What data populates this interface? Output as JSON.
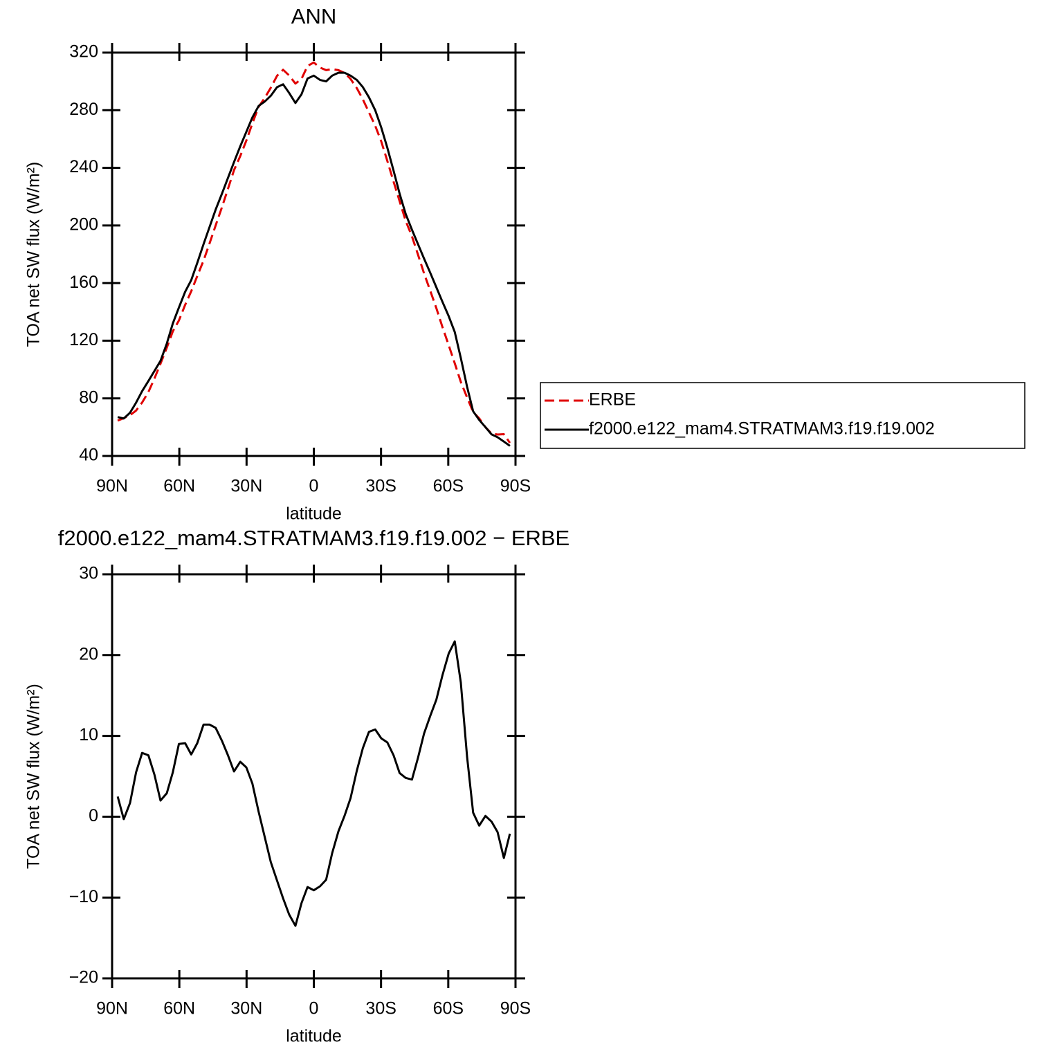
{
  "chart_data": [
    {
      "type": "line",
      "title": "ANN",
      "xlabel": "latitude",
      "ylabel": "TOA net SW flux (W/m²)",
      "xlim": [
        90,
        -90
      ],
      "xticks": [
        {
          "value": 90,
          "label": "90N"
        },
        {
          "value": 60,
          "label": "60N"
        },
        {
          "value": 30,
          "label": "30N"
        },
        0,
        {
          "value": -30,
          "label": "30S"
        },
        {
          "value": -60,
          "label": "60S"
        },
        {
          "value": -90,
          "label": "90S"
        }
      ],
      "ylim": [
        40,
        320
      ],
      "yticks": [
        40,
        80,
        120,
        160,
        200,
        240,
        280,
        320
      ],
      "legend": "right",
      "x": [
        87.5,
        84.8,
        82.0,
        79.3,
        76.6,
        73.8,
        71.1,
        68.4,
        65.6,
        62.9,
        60.2,
        57.4,
        54.7,
        52.0,
        49.2,
        46.5,
        43.8,
        41.0,
        38.3,
        35.6,
        32.8,
        30.1,
        27.4,
        24.6,
        21.9,
        19.2,
        16.4,
        13.7,
        11.0,
        8.2,
        5.5,
        2.8,
        0.0,
        -2.8,
        -5.5,
        -8.2,
        -11.0,
        -13.7,
        -16.4,
        -19.2,
        -21.9,
        -24.6,
        -27.4,
        -30.1,
        -32.8,
        -35.6,
        -38.3,
        -41.0,
        -43.8,
        -46.5,
        -49.2,
        -52.0,
        -54.7,
        -57.4,
        -60.2,
        -62.9,
        -65.6,
        -68.4,
        -71.1,
        -73.8,
        -76.6,
        -79.3,
        -82.0,
        -84.8,
        -87.5
      ],
      "series": [
        {
          "name": "ERBE",
          "color": "#e00000",
          "dashed": true,
          "values": [
            64.5,
            66.3,
            68.3,
            71.5,
            77.1,
            84.4,
            93.8,
            104.0,
            115.1,
            126.5,
            134.0,
            144.9,
            154.3,
            164.9,
            175.6,
            187.6,
            200.0,
            212.6,
            225.4,
            238.4,
            248.2,
            258.9,
            270.9,
            282.4,
            288.5,
            295.6,
            303.9,
            308.1,
            304.1,
            298.5,
            301.7,
            310.7,
            313.1,
            309.6,
            307.8,
            308.5,
            307.8,
            305.9,
            301.7,
            295.3,
            287.5,
            278.5,
            269.2,
            258.3,
            244.8,
            230.4,
            216.8,
            203.2,
            192.4,
            179.7,
            166.7,
            154.5,
            142.5,
            129.5,
            116.8,
            104.3,
            91.4,
            80.6,
            70.5,
            66.1,
            59.9,
            55.6,
            54.9,
            55.1,
            49.1
          ]
        },
        {
          "name": "f2000.e122_mam4.STRATMAM3.f19.f19.002",
          "color": "#000000",
          "dashed": false,
          "values": [
            67,
            66,
            70,
            77,
            85,
            92,
            99,
            106,
            118,
            132,
            143,
            154,
            162,
            174,
            187,
            199,
            211,
            222,
            233,
            244,
            255,
            265,
            275,
            283,
            286,
            290,
            296,
            298,
            292,
            285,
            291,
            302,
            304,
            301,
            300,
            304,
            306,
            306,
            304,
            301,
            296,
            289,
            280,
            268,
            254,
            238,
            222,
            208,
            197,
            187,
            177,
            167,
            157,
            147,
            137,
            126,
            108,
            88,
            71,
            65,
            60,
            55,
            53,
            50,
            47
          ]
        }
      ]
    },
    {
      "type": "line",
      "title": "f2000.e122_mam4.STRATMAM3.f19.f19.002 − ERBE",
      "xlabel": "latitude",
      "ylabel": "TOA net SW flux (W/m²)",
      "xlim": [
        90,
        -90
      ],
      "xticks": [
        {
          "value": 90,
          "label": "90N"
        },
        {
          "value": 60,
          "label": "60N"
        },
        {
          "value": 30,
          "label": "30N"
        },
        0,
        {
          "value": -30,
          "label": "30S"
        },
        {
          "value": -60,
          "label": "60S"
        },
        {
          "value": -90,
          "label": "90S"
        }
      ],
      "ylim": [
        -20,
        30
      ],
      "yticks": [
        {
          "value": -20,
          "label": "−20"
        },
        {
          "value": -10,
          "label": "−10"
        },
        0,
        10,
        20,
        30
      ],
      "x": [
        87.5,
        84.8,
        82.0,
        79.3,
        76.6,
        73.8,
        71.1,
        68.4,
        65.6,
        62.9,
        60.2,
        57.4,
        54.7,
        52.0,
        49.2,
        46.5,
        43.8,
        41.0,
        38.3,
        35.6,
        32.8,
        30.1,
        27.4,
        24.6,
        21.9,
        19.2,
        16.4,
        13.7,
        11.0,
        8.2,
        5.5,
        2.8,
        0.0,
        -2.8,
        -5.5,
        -8.2,
        -11.0,
        -13.7,
        -16.4,
        -19.2,
        -21.9,
        -24.6,
        -27.4,
        -30.1,
        -32.8,
        -35.6,
        -38.3,
        -41.0,
        -43.8,
        -46.5,
        -49.2,
        -52.0,
        -54.7,
        -57.4,
        -60.2,
        -62.9,
        -65.6,
        -68.4,
        -71.1,
        -73.8,
        -76.6,
        -79.3,
        -82.0,
        -84.8,
        -87.5
      ],
      "series": [
        {
          "color": "#000000",
          "dashed": false,
          "values": [
            2.5,
            -0.3,
            1.7,
            5.5,
            7.9,
            7.6,
            5.2,
            2.0,
            2.9,
            5.5,
            9.0,
            9.1,
            7.7,
            9.1,
            11.4,
            11.4,
            11.0,
            9.4,
            7.6,
            5.6,
            6.8,
            6.1,
            4.1,
            0.6,
            -2.5,
            -5.6,
            -7.9,
            -10.1,
            -12.1,
            -13.5,
            -10.7,
            -8.7,
            -9.1,
            -8.6,
            -7.8,
            -4.5,
            -1.8,
            0.1,
            2.3,
            5.7,
            8.5,
            10.5,
            10.8,
            9.7,
            9.2,
            7.6,
            5.4,
            4.8,
            4.6,
            7.3,
            10.3,
            12.5,
            14.5,
            17.5,
            20.2,
            21.7,
            16.6,
            7.4,
            0.5,
            -1.1,
            0.1,
            -0.6,
            -1.9,
            -5.1,
            -2.1
          ]
        }
      ]
    }
  ]
}
